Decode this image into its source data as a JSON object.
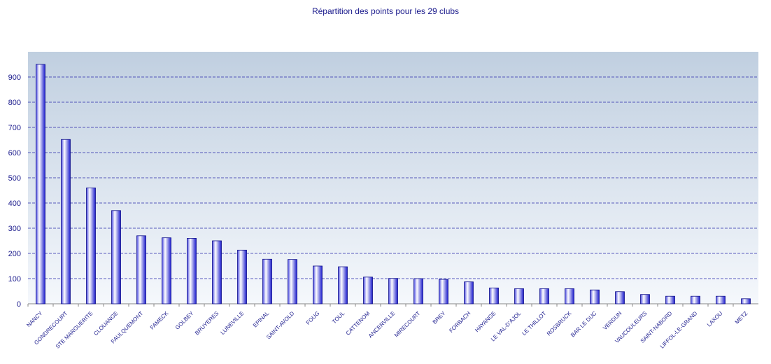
{
  "chart_data": {
    "type": "bar",
    "title": "Répartition des points pour les 29 clubs",
    "xlabel": "",
    "ylabel": "",
    "ylim": [
      0,
      1000
    ],
    "yticks": [
      0,
      100,
      200,
      300,
      400,
      500,
      600,
      700,
      800,
      900
    ],
    "grid": true,
    "categories": [
      "NANCY",
      "GONDRECOURT",
      "STE MARGUERITE",
      "CLOUANGE",
      "FAULQUEMONT",
      "FAMECK",
      "GOLBEY",
      "BRUYERES",
      "LUNEVILLE",
      "EPINAL",
      "SAINT-AVOLD",
      "FOUG",
      "TOUL",
      "CATTENOM",
      "ANCERVILLE",
      "MIRECOURT",
      "BREY",
      "FORBACH",
      "HAYANGE",
      "LE VAL-D'AJOL",
      "LE THILLOT",
      "ROSBRUCK",
      "BAR LE DUC",
      "VERDUN",
      "VAUCOULEURS",
      "SAINT-NABORD",
      "LIFFOL-LE-GRAND",
      "LAXOU",
      "METZ"
    ],
    "values": [
      950,
      652,
      460,
      370,
      270,
      262,
      260,
      250,
      213,
      177,
      176,
      150,
      147,
      106,
      101,
      100,
      97,
      87,
      63,
      60,
      60,
      60,
      55,
      48,
      37,
      30,
      30,
      30,
      20
    ],
    "colors": {
      "bar_light": "#ffffff",
      "bar_dark": "#1a1acc",
      "grid": "#2a2aaa",
      "plot_top": "#c0cfe0",
      "plot_bottom": "#f5f8fc",
      "text": "#1a1a8c"
    }
  }
}
